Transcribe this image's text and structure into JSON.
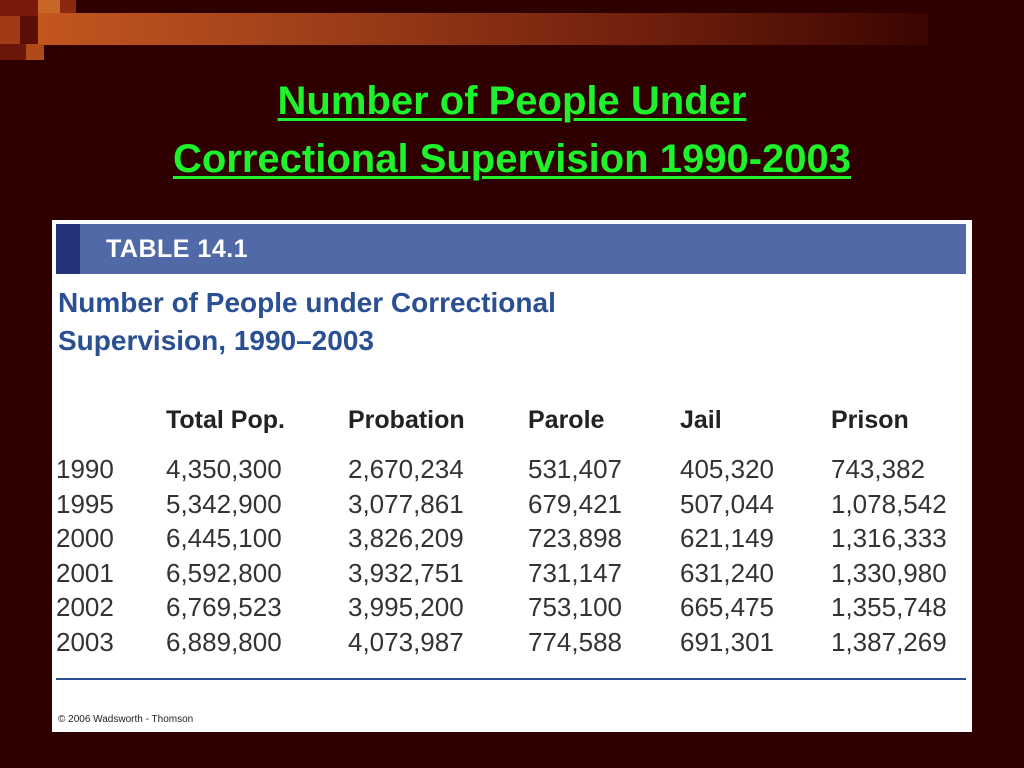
{
  "slide_title_line1": "Number of People Under",
  "slide_title_line2": "Correctional Supervision 1990-2003",
  "table": {
    "label": "TABLE 14.1",
    "title_line1": "Number of People under Correctional",
    "title_line2": "Supervision, 1990–2003",
    "columns": [
      "Total Pop.",
      "Probation",
      "Parole",
      "Jail",
      "Prison"
    ],
    "rows": [
      {
        "year": "1990",
        "total": "4,350,300",
        "probation": "2,670,234",
        "parole": "531,407",
        "jail": "405,320",
        "prison": "743,382"
      },
      {
        "year": "1995",
        "total": "5,342,900",
        "probation": "3,077,861",
        "parole": "679,421",
        "jail": "507,044",
        "prison": "1,078,542"
      },
      {
        "year": "2000",
        "total": "6,445,100",
        "probation": "3,826,209",
        "parole": "723,898",
        "jail": "621,149",
        "prison": "1,316,333"
      },
      {
        "year": "2001",
        "total": "6,592,800",
        "probation": "3,932,751",
        "parole": "731,147",
        "jail": "631,240",
        "prison": "1,330,980"
      },
      {
        "year": "2002",
        "total": "6,769,523",
        "probation": "3,995,200",
        "parole": "753,100",
        "jail": "665,475",
        "prison": "1,355,748"
      },
      {
        "year": "2003",
        "total": "6,889,800",
        "probation": "4,073,987",
        "parole": "774,588",
        "jail": "691,301",
        "prison": "1,387,269"
      }
    ],
    "copyright": "© 2006 Wadsworth - Thomson"
  },
  "colors": {
    "background": "#2e0000",
    "title": "#1df22a",
    "header_bar": "#5169a6",
    "table_title": "#2b4f93"
  }
}
